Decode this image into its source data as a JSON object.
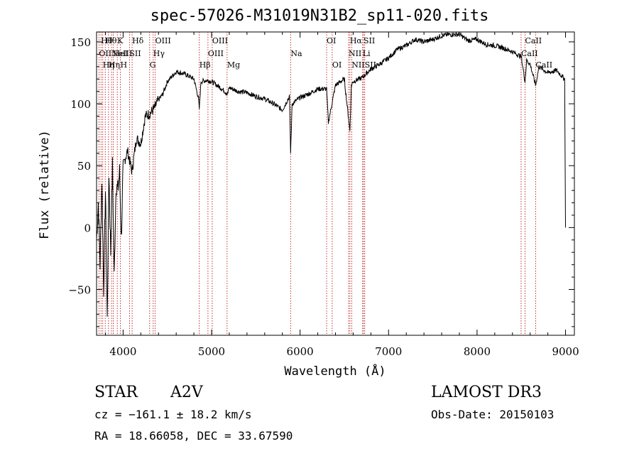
{
  "chart_data": {
    "type": "line",
    "title": "spec-57026-M31019N31B2_sp11-020.fits",
    "xlabel": "Wavelength (Å)",
    "ylabel": "Flux (relative)",
    "xlim": [
      3700,
      9100
    ],
    "ylim": [
      -87,
      158
    ],
    "xticks": [
      4000,
      5000,
      6000,
      7000,
      8000,
      9000
    ],
    "yticks": [
      -50,
      0,
      50,
      100,
      150
    ],
    "x_tick_labels": [
      "4000",
      "5000",
      "6000",
      "7000",
      "8000",
      "9000"
    ],
    "y_tick_labels": [
      "−50",
      "0",
      "50",
      "100",
      "150"
    ],
    "series": [
      {
        "name": "flux",
        "x": [
          3700,
          3720,
          3740,
          3760,
          3780,
          3800,
          3820,
          3840,
          3860,
          3880,
          3900,
          3920,
          3940,
          3960,
          3980,
          4000,
          4050,
          4100,
          4150,
          4200,
          4250,
          4300,
          4350,
          4400,
          4450,
          4500,
          4600,
          4700,
          4800,
          4850,
          4861,
          4880,
          4950,
          5000,
          5100,
          5180,
          5200,
          5300,
          5400,
          5500,
          5600,
          5700,
          5800,
          5880,
          5893,
          5910,
          6000,
          6100,
          6200,
          6300,
          6320,
          6400,
          6500,
          6563,
          6580,
          6600,
          6700,
          6800,
          6900,
          7000,
          7100,
          7200,
          7300,
          7400,
          7500,
          7600,
          7700,
          7800,
          7900,
          8000,
          8100,
          8200,
          8300,
          8400,
          8500,
          8542,
          8560,
          8600,
          8662,
          8700,
          8800,
          8900,
          8950,
          8990,
          9000
        ],
        "values": [
          -10,
          20,
          -30,
          40,
          -50,
          30,
          -75,
          45,
          -20,
          50,
          -40,
          35,
          30,
          45,
          -10,
          50,
          62,
          45,
          72,
          68,
          90,
          92,
          96,
          103,
          108,
          118,
          126,
          124,
          120,
          105,
          96,
          118,
          119,
          118,
          113,
          108,
          113,
          110,
          109,
          106,
          104,
          100,
          95,
          106,
          60,
          100,
          105,
          108,
          112,
          112,
          85,
          115,
          120,
          78,
          115,
          118,
          121,
          128,
          132,
          137,
          144,
          147,
          152,
          150,
          152,
          155,
          156,
          156,
          151,
          152,
          148,
          147,
          145,
          142,
          138,
          118,
          135,
          132,
          115,
          130,
          125,
          127,
          123,
          120,
          0
        ]
      }
    ],
    "lines": [
      {
        "x": 3727,
        "label": "OII",
        "row": 1
      },
      {
        "x": 3750,
        "label": "Hθ",
        "row": 0
      },
      {
        "x": 3770,
        "label": "Hη",
        "row": 2
      },
      {
        "x": 3798,
        "label": "Hθ",
        "row": 0
      },
      {
        "x": 3835,
        "label": "Hη",
        "row": 2
      },
      {
        "x": 3869,
        "label": "NeIII",
        "row": 1
      },
      {
        "x": 3889,
        "label": "HeI",
        "row": 1
      },
      {
        "x": 3934,
        "label": "K",
        "row": 0
      },
      {
        "x": 3969,
        "label": "H",
        "row": 2
      },
      {
        "x": 4072,
        "label": "SII",
        "row": 1
      },
      {
        "x": 4102,
        "label": "Hδ",
        "row": 0
      },
      {
        "x": 4300,
        "label": "G",
        "row": 2
      },
      {
        "x": 4340,
        "label": "Hγ",
        "row": 1
      },
      {
        "x": 4363,
        "label": "OIII",
        "row": 0
      },
      {
        "x": 4861,
        "label": "Hβ",
        "row": 2
      },
      {
        "x": 4959,
        "label": "OIII",
        "row": 1
      },
      {
        "x": 5007,
        "label": "OIII",
        "row": 0
      },
      {
        "x": 5175,
        "label": "Mg",
        "row": 2
      },
      {
        "x": 5893,
        "label": "Na",
        "row": 1
      },
      {
        "x": 6300,
        "label": "OI",
        "row": 0
      },
      {
        "x": 6363,
        "label": "OI",
        "row": 2
      },
      {
        "x": 6548,
        "label": "NII",
        "row": 1
      },
      {
        "x": 6563,
        "label": "Hα",
        "row": 0
      },
      {
        "x": 6583,
        "label": "NII",
        "row": 2
      },
      {
        "x": 6707,
        "label": "Li",
        "row": 1
      },
      {
        "x": 6717,
        "label": "SII",
        "row": 0
      },
      {
        "x": 6731,
        "label": "SII",
        "row": 2
      },
      {
        "x": 8498,
        "label": "CaII",
        "row": 1
      },
      {
        "x": 8542,
        "label": "CaII",
        "row": 0
      },
      {
        "x": 8662,
        "label": "CaII",
        "row": 2
      }
    ]
  },
  "info": {
    "obj_class": "STAR",
    "subclass": "A2V",
    "survey": "LAMOST DR3",
    "cz": "cz = −161.1 ± 18.2 km/s",
    "obs_date": "Obs-Date: 20150103",
    "radec": "RA =  18.66058, DEC =  33.67590"
  },
  "colors": {
    "line_marker": "#b00000",
    "spectrum": "#000000",
    "axis": "#000000"
  }
}
